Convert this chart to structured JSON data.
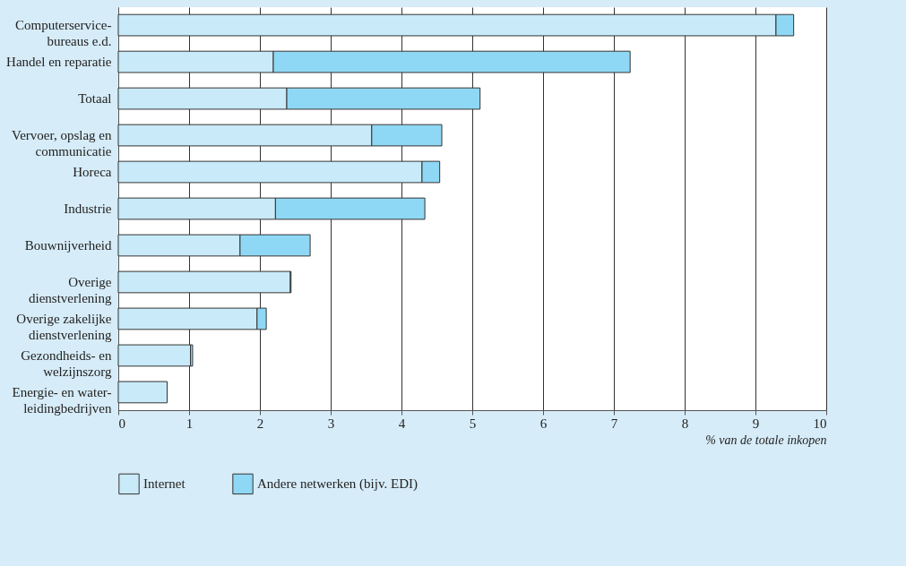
{
  "chart_data": {
    "type": "bar",
    "orientation": "horizontal",
    "stacked": true,
    "categories": [
      "Computerservice-bureaus e.d.",
      "Handel en reparatie",
      "Totaal",
      "Vervoer, opslag en communicatie",
      "Horeca",
      "Industrie",
      "Bouwnijverheid",
      "Overige dienstverlening",
      "Overige zakelijke dienstverlening",
      "Gezondheids- en welzijnszorg",
      "Energie- en water-leidingbedrijven"
    ],
    "series": [
      {
        "name": "Internet",
        "color": "#c8eaf9",
        "values": [
          9.29,
          2.19,
          2.38,
          3.58,
          4.29,
          2.22,
          1.72,
          2.43,
          1.96,
          1.02,
          0.69
        ]
      },
      {
        "name": "Andere netwerken (bijv. EDI)",
        "color": "#8fd8f5",
        "values": [
          0.25,
          5.04,
          2.73,
          0.99,
          0.25,
          2.11,
          0.99,
          0.01,
          0.13,
          0.03,
          null
        ]
      }
    ],
    "xlabel": "% van de totale inkopen",
    "xlim": [
      0,
      10
    ],
    "xticks": [
      0,
      1,
      2,
      3,
      4,
      5,
      6,
      7,
      8,
      9,
      10
    ],
    "grid": "x",
    "legend": "bottom"
  }
}
